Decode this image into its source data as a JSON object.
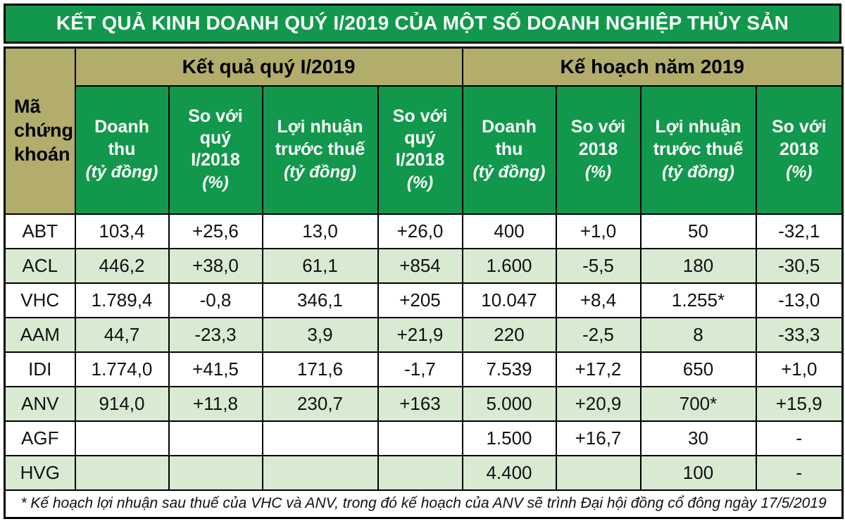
{
  "chart_data": {
    "type": "table",
    "title": "KẾT QUẢ KINH DOANH QUÝ I/2019 CỦA MỘT SỐ DOANH NGHIỆP THỦY SẢN",
    "corner_header": "Mã chứng khoán",
    "group_headers": [
      "Kết quả quý I/2019",
      "Kế hoạch năm 2019"
    ],
    "columns": [
      {
        "label": "Doanh thu",
        "unit": "(tỷ đồng)"
      },
      {
        "label": "So với quý I/2018",
        "unit": "(%)"
      },
      {
        "label": "Lợi nhuận trước thuế",
        "unit": "(tỷ đồng)"
      },
      {
        "label": "So với quý I/2018",
        "unit": "(%)"
      },
      {
        "label": "Doanh thu",
        "unit": "(tỷ đồng)"
      },
      {
        "label": "So với 2018",
        "unit": "(%)"
      },
      {
        "label": "Lợi nhuận trước thuế",
        "unit": "(tỷ đồng)"
      },
      {
        "label": "So với 2018",
        "unit": "(%)"
      }
    ],
    "rows": [
      {
        "code": "ABT",
        "values": [
          "103,4",
          "+25,6",
          "13,0",
          "+26,0",
          "400",
          "+1,0",
          "50",
          "-32,1"
        ]
      },
      {
        "code": "ACL",
        "values": [
          "446,2",
          "+38,0",
          "61,1",
          "+854",
          "1.600",
          "-5,5",
          "180",
          "-30,5"
        ]
      },
      {
        "code": "VHC",
        "values": [
          "1.789,4",
          "-0,8",
          "346,1",
          "+205",
          "10.047",
          "+8,4",
          "1.255*",
          "-13,0"
        ]
      },
      {
        "code": "AAM",
        "values": [
          "44,7",
          "-23,3",
          "3,9",
          "+21,9",
          "220",
          "-2,5",
          "8",
          "-33,3"
        ]
      },
      {
        "code": "IDI",
        "values": [
          "1.774,0",
          "+41,5",
          "171,6",
          "-1,7",
          "7.539",
          "+17,2",
          "650",
          "+1,0"
        ]
      },
      {
        "code": "ANV",
        "values": [
          "914,0",
          "+11,8",
          "230,7",
          "+163",
          "5.000",
          "+20,9",
          "700*",
          "+15,9"
        ]
      },
      {
        "code": "AGF",
        "values": [
          "",
          "",
          "",
          "",
          "1.500",
          "+16,7",
          "30",
          "-"
        ]
      },
      {
        "code": "HVG",
        "values": [
          "",
          "",
          "",
          "",
          "4.400",
          "",
          "100",
          "-"
        ]
      }
    ],
    "footnote": "* Kế hoạch lợi nhuận sau thuế của VHC và ANV, trong đó kế hoạch của ANV sẽ trình Đại hội đồng cổ đông ngày 17/5/2019"
  },
  "colors": {
    "green": "#12984c",
    "olive": "#b2ad6b",
    "row_alt": "#d8ead2",
    "border": "#000000"
  }
}
